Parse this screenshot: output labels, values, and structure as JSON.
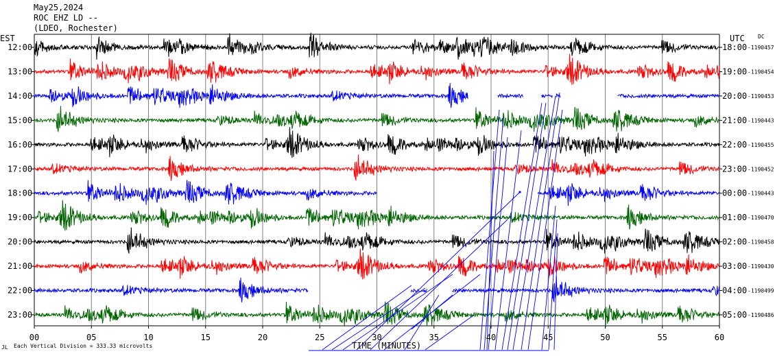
{
  "header": {
    "date": "May25,2024",
    "station": "ROC EHZ LD --",
    "network": "(LDEO, Rochester)"
  },
  "left_timezone": "EST",
  "right_timezone": "UTC",
  "dc_label": "DC",
  "footer_note": "Each Vertical Division = 333.33 microvolts",
  "footer_mark": "JL",
  "colors": {
    "trace_cycle": [
      "#000000",
      "#ff0000",
      "#0000ff",
      "#006400"
    ],
    "grid": "#808080",
    "overlay_lines": "#0000ff"
  },
  "chart_data": {
    "type": "line",
    "title": "",
    "xlabel": "TIME (MINUTES)",
    "ylabel": "",
    "xlim": [
      0,
      60
    ],
    "x_ticks": [
      "00",
      "05",
      "10",
      "15",
      "20",
      "25",
      "30",
      "35",
      "40",
      "45",
      "50",
      "55",
      "60"
    ],
    "rows": [
      {
        "left": "12:00",
        "right": "18:00",
        "dc": "-1190457",
        "gaps": []
      },
      {
        "left": "13:00",
        "right": "19:00",
        "dc": "-1190454",
        "gaps": []
      },
      {
        "left": "14:00",
        "right": "20:00",
        "dc": "-1190453",
        "gaps": [
          [
            38,
            40.6
          ],
          [
            42.8,
            44.4
          ],
          [
            45.4,
            45.7
          ],
          [
            46.1,
            51.1
          ]
        ]
      },
      {
        "left": "15:00",
        "right": "21:00",
        "dc": "-1190443",
        "gaps": []
      },
      {
        "left": "16:00",
        "right": "22:00",
        "dc": "-1190455",
        "gaps": []
      },
      {
        "left": "17:00",
        "right": "23:00",
        "dc": "-1190452",
        "gaps": []
      },
      {
        "left": "18:00",
        "right": "00:00",
        "dc": "-1190443",
        "gaps": [
          [
            30,
            44.1
          ]
        ]
      },
      {
        "left": "19:00",
        "right": "01:00",
        "dc": "-1190470",
        "gaps": []
      },
      {
        "left": "20:00",
        "right": "02:00",
        "dc": "-1190458",
        "gaps": []
      },
      {
        "left": "21:00",
        "right": "03:00",
        "dc": "-1190430",
        "gaps": []
      },
      {
        "left": "22:00",
        "right": "04:00",
        "dc": "-1190499",
        "gaps": [
          [
            24,
            33
          ],
          [
            34.4,
            36.6
          ]
        ]
      },
      {
        "left": "23:00",
        "right": "05:00",
        "dc": "-1190486",
        "gaps": []
      }
    ]
  }
}
